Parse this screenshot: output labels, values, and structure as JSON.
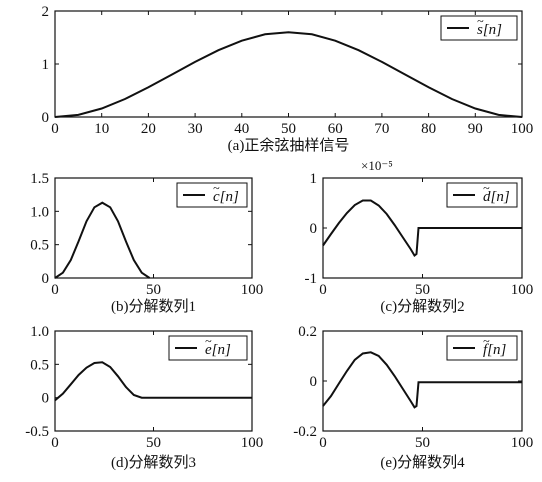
{
  "chart_data": [
    {
      "id": "a",
      "type": "line",
      "caption": "(a)正余弦抽样信号",
      "xlim": [
        0,
        100
      ],
      "ylim": [
        0,
        2
      ],
      "xticks": [
        0,
        10,
        20,
        30,
        40,
        50,
        60,
        70,
        80,
        90,
        100
      ],
      "yticks": [
        0,
        1,
        2
      ],
      "ytick_labels": [
        "0",
        "1",
        "2"
      ],
      "exponent_label": "",
      "legend": {
        "label": "s[n]",
        "accent": "~",
        "position": "top-right"
      },
      "series": [
        {
          "x": [
            0,
            5,
            10,
            15,
            20,
            25,
            30,
            35,
            40,
            45,
            50,
            55,
            60,
            65,
            70,
            75,
            80,
            85,
            90,
            95,
            100
          ],
          "y": [
            0,
            0.04,
            0.16,
            0.34,
            0.56,
            0.8,
            1.04,
            1.26,
            1.44,
            1.56,
            1.6,
            1.56,
            1.44,
            1.26,
            1.04,
            0.8,
            0.56,
            0.34,
            0.16,
            0.04,
            0
          ]
        }
      ]
    },
    {
      "id": "b",
      "type": "line",
      "caption": "(b)分解数列1",
      "xlim": [
        0,
        100
      ],
      "ylim": [
        0,
        1.5
      ],
      "xticks": [
        0,
        50,
        100
      ],
      "yticks": [
        0,
        0.5,
        1.0,
        1.5
      ],
      "ytick_labels": [
        "0",
        "0.5",
        "1.0",
        "1.5"
      ],
      "exponent_label": "",
      "legend": {
        "label": "c[n]",
        "accent": "~",
        "position": "top-right"
      },
      "series": [
        {
          "x": [
            0,
            4,
            8,
            12,
            16,
            20,
            24,
            28,
            32,
            36,
            40,
            44,
            48
          ],
          "y": [
            0,
            0.08,
            0.27,
            0.55,
            0.85,
            1.06,
            1.13,
            1.06,
            0.85,
            0.55,
            0.27,
            0.08,
            0
          ]
        }
      ]
    },
    {
      "id": "c",
      "type": "line",
      "caption": "(c)分解数列2",
      "xlim": [
        0,
        100
      ],
      "ylim": [
        -1,
        1
      ],
      "xticks": [
        0,
        50,
        100
      ],
      "yticks": [
        -1,
        0,
        1
      ],
      "ytick_labels": [
        "-1",
        "0",
        "1"
      ],
      "exponent_label": "×10⁻⁵",
      "legend": {
        "label": "d[n]",
        "accent": "~",
        "position": "top-right"
      },
      "series": [
        {
          "x": [
            0,
            4,
            8,
            12,
            16,
            20,
            24,
            28,
            32,
            36,
            40,
            44,
            46,
            47,
            48,
            100
          ],
          "y": [
            -0.35,
            -0.12,
            0.1,
            0.3,
            0.46,
            0.55,
            0.55,
            0.45,
            0.28,
            0.06,
            -0.18,
            -0.42,
            -0.55,
            -0.52,
            0,
            0
          ]
        }
      ]
    },
    {
      "id": "d",
      "type": "line",
      "caption": "(d)分解数列3",
      "xlim": [
        0,
        100
      ],
      "ylim": [
        -0.5,
        1.0
      ],
      "xticks": [
        0,
        50,
        100
      ],
      "yticks": [
        -0.5,
        0,
        0.5,
        1.0
      ],
      "ytick_labels": [
        "-0.5",
        "0",
        "0.5",
        "1.0"
      ],
      "exponent_label": "",
      "legend": {
        "label": "e[n]",
        "accent": "~",
        "position": "top-right"
      },
      "series": [
        {
          "x": [
            0,
            4,
            8,
            12,
            16,
            20,
            24,
            28,
            32,
            36,
            40,
            44,
            46,
            100
          ],
          "y": [
            -0.04,
            0.06,
            0.2,
            0.34,
            0.45,
            0.52,
            0.53,
            0.46,
            0.32,
            0.16,
            0.04,
            0,
            0,
            0
          ]
        }
      ]
    },
    {
      "id": "e",
      "type": "line",
      "caption": "(e)分解数列4",
      "xlim": [
        0,
        100
      ],
      "ylim": [
        -0.2,
        0.2
      ],
      "xticks": [
        0,
        50,
        100
      ],
      "yticks": [
        -0.2,
        0,
        0.2
      ],
      "ytick_labels": [
        "-0.2",
        "0",
        "0.2"
      ],
      "exponent_label": "",
      "legend": {
        "label": "f[n]",
        "accent": "~",
        "position": "top-right"
      },
      "series": [
        {
          "x": [
            0,
            4,
            8,
            12,
            16,
            20,
            24,
            28,
            32,
            36,
            40,
            44,
            46,
            47,
            48,
            100
          ],
          "y": [
            -0.1,
            -0.06,
            -0.01,
            0.04,
            0.085,
            0.11,
            0.115,
            0.1,
            0.065,
            0.02,
            -0.03,
            -0.08,
            -0.105,
            -0.1,
            -0.005,
            -0.005
          ]
        }
      ]
    }
  ]
}
